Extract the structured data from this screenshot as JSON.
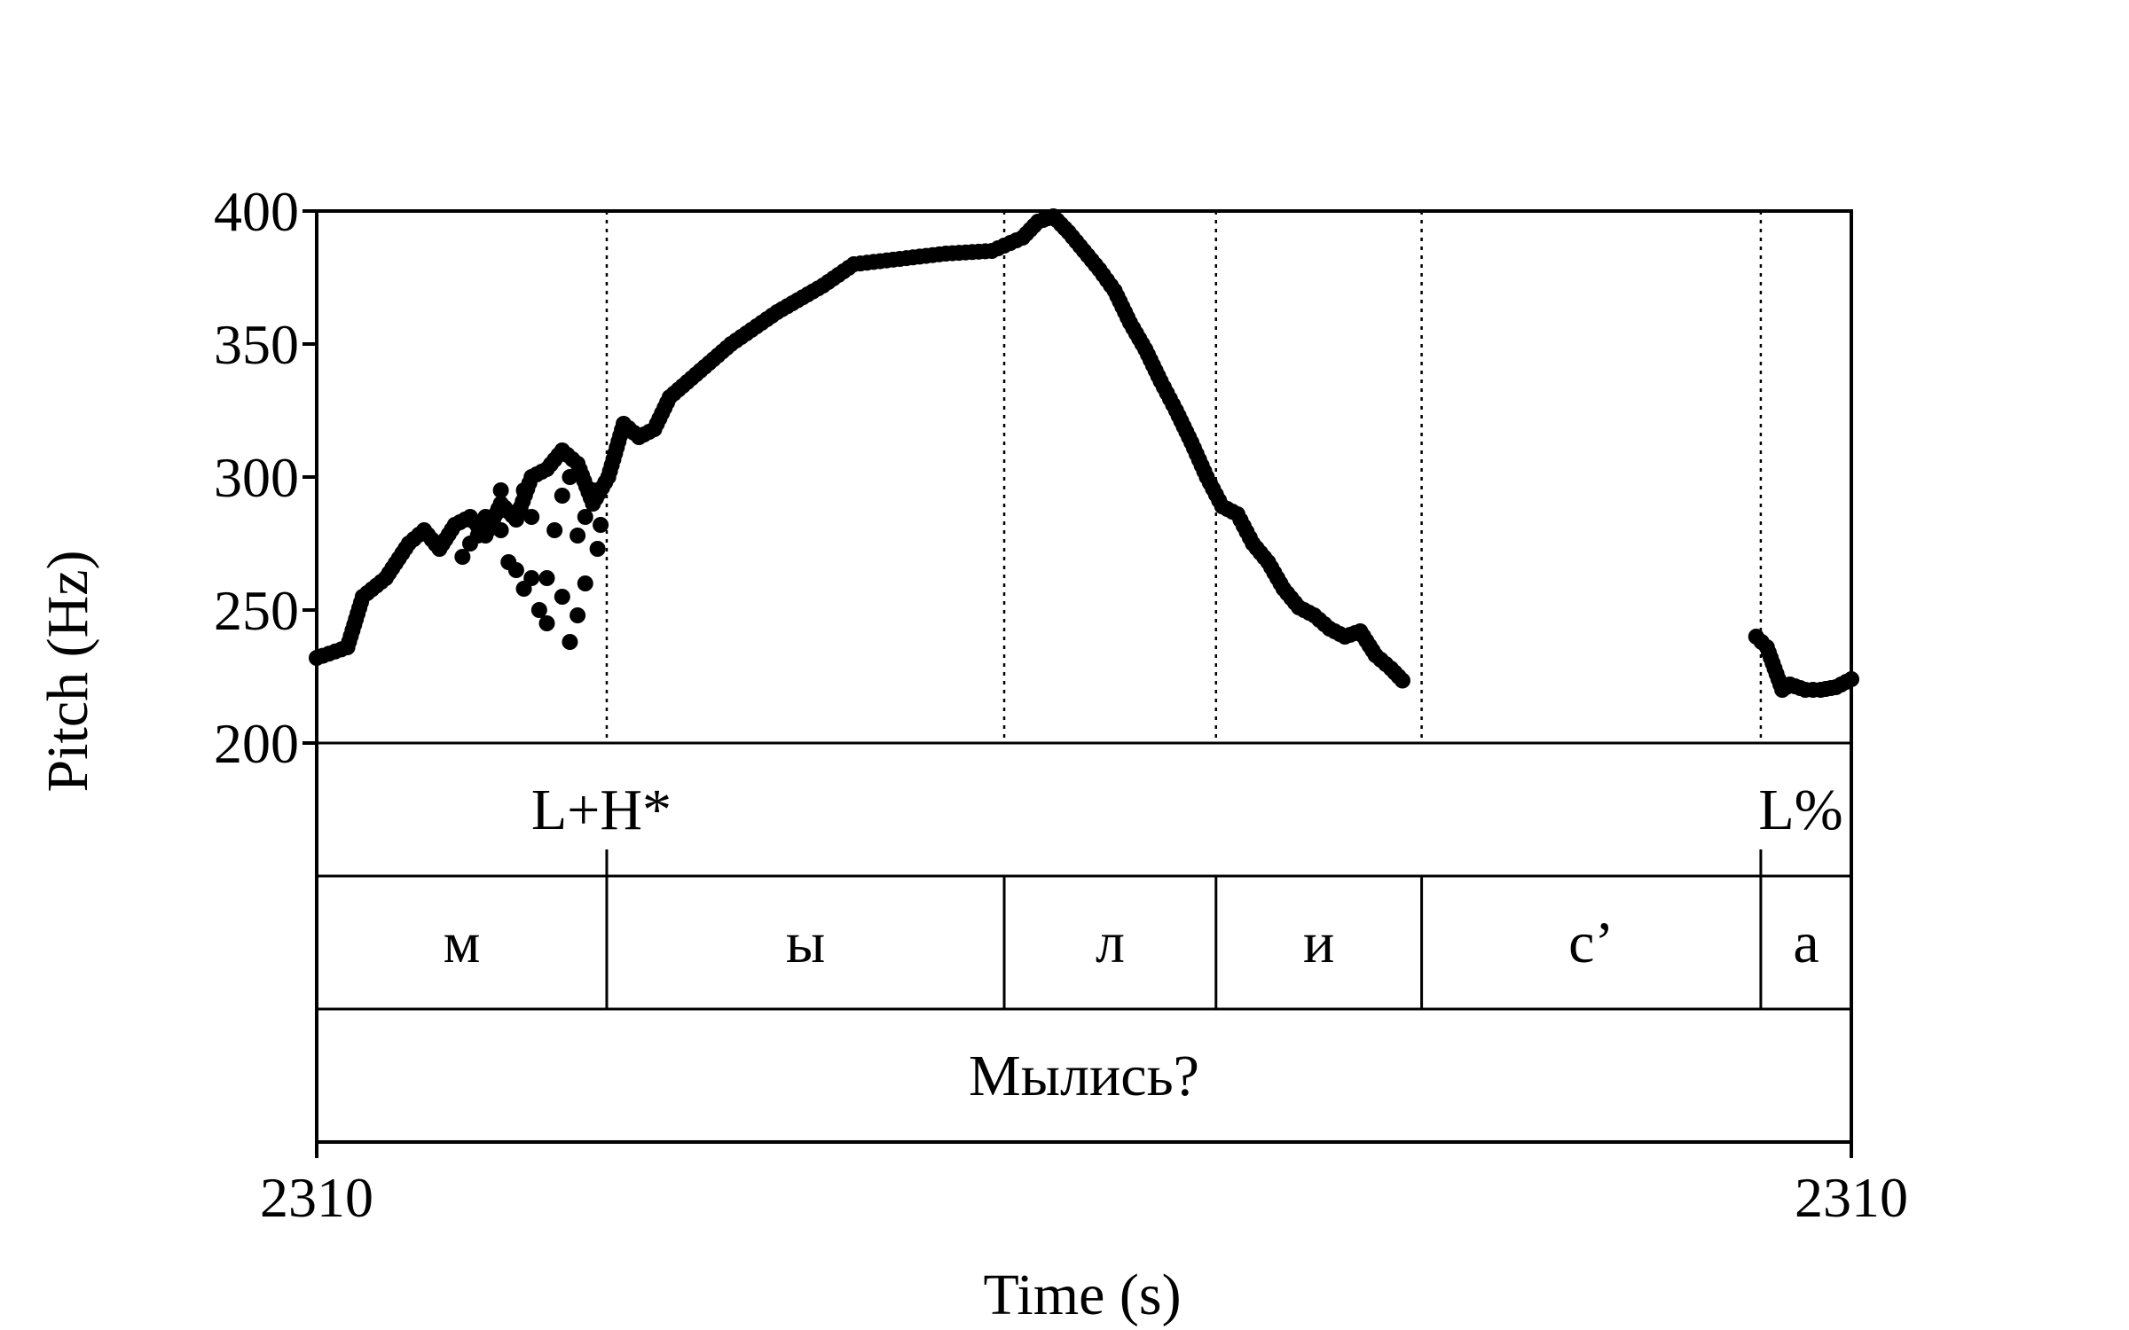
{
  "chart_data": {
    "type": "scatter",
    "ylabel": "Pitch (Hz)",
    "xlabel": "Time (s)",
    "ylim": [
      200,
      400
    ],
    "yticks": [
      "200",
      "250",
      "300",
      "350",
      "400"
    ],
    "ytick_values": [
      200,
      250,
      300,
      350,
      400
    ],
    "xlim": [
      0,
      1
    ],
    "xtick_labels": {
      "start": "2310",
      "end": "2310"
    },
    "boundaries": [
      0.189,
      0.448,
      0.586,
      0.72,
      0.941
    ],
    "tones": [
      {
        "label": "L+H*",
        "t": 0.189
      },
      {
        "label": "L%",
        "t": 0.941
      }
    ],
    "segments": [
      {
        "label": "м",
        "start": 0.0,
        "end": 0.189
      },
      {
        "label": "ы",
        "start": 0.189,
        "end": 0.448
      },
      {
        "label": "л",
        "start": 0.448,
        "end": 0.586
      },
      {
        "label": "и",
        "start": 0.586,
        "end": 0.72
      },
      {
        "label": "с’",
        "start": 0.72,
        "end": 0.941
      },
      {
        "label": "а",
        "start": 0.941,
        "end": 1.0
      }
    ],
    "words": [
      {
        "label": "Мылись?",
        "start": 0.0,
        "end": 1.0
      }
    ],
    "pitch_contour": [
      [
        0.0,
        232
      ],
      [
        0.02,
        236
      ],
      [
        0.03,
        255
      ],
      [
        0.045,
        262
      ],
      [
        0.06,
        275
      ],
      [
        0.07,
        280
      ],
      [
        0.08,
        273
      ],
      [
        0.09,
        282
      ],
      [
        0.1,
        285
      ],
      [
        0.11,
        278
      ],
      [
        0.12,
        290
      ],
      [
        0.13,
        284
      ],
      [
        0.14,
        300
      ],
      [
        0.15,
        303
      ],
      [
        0.16,
        310
      ],
      [
        0.17,
        305
      ],
      [
        0.18,
        290
      ],
      [
        0.19,
        300
      ],
      [
        0.2,
        320
      ],
      [
        0.21,
        315
      ],
      [
        0.22,
        318
      ],
      [
        0.23,
        330
      ],
      [
        0.25,
        340
      ],
      [
        0.27,
        350
      ],
      [
        0.3,
        362
      ],
      [
        0.33,
        372
      ],
      [
        0.35,
        380
      ],
      [
        0.38,
        382
      ],
      [
        0.41,
        384
      ],
      [
        0.44,
        385
      ],
      [
        0.46,
        390
      ],
      [
        0.47,
        396
      ],
      [
        0.48,
        398
      ],
      [
        0.49,
        392
      ],
      [
        0.5,
        385
      ],
      [
        0.51,
        378
      ],
      [
        0.52,
        370
      ],
      [
        0.53,
        358
      ],
      [
        0.54,
        348
      ],
      [
        0.55,
        336
      ],
      [
        0.56,
        325
      ],
      [
        0.57,
        313
      ],
      [
        0.58,
        300
      ],
      [
        0.59,
        289
      ],
      [
        0.6,
        286
      ],
      [
        0.61,
        275
      ],
      [
        0.62,
        268
      ],
      [
        0.63,
        258
      ],
      [
        0.64,
        251
      ],
      [
        0.65,
        248
      ],
      [
        0.66,
        243
      ],
      [
        0.67,
        240
      ],
      [
        0.68,
        242
      ],
      [
        0.69,
        233
      ],
      [
        0.7,
        228
      ],
      [
        0.71,
        222
      ],
      [
        0.938,
        240
      ],
      [
        0.945,
        236
      ],
      [
        0.95,
        228
      ],
      [
        0.955,
        220
      ],
      [
        0.96,
        222
      ],
      [
        0.97,
        220
      ],
      [
        0.98,
        220
      ],
      [
        0.99,
        221
      ],
      [
        1.0,
        224
      ]
    ],
    "scatter_points": [
      [
        0.095,
        270
      ],
      [
        0.1,
        275
      ],
      [
        0.105,
        278
      ],
      [
        0.11,
        285
      ],
      [
        0.115,
        282
      ],
      [
        0.12,
        280
      ],
      [
        0.125,
        268
      ],
      [
        0.13,
        265
      ],
      [
        0.135,
        258
      ],
      [
        0.14,
        262
      ],
      [
        0.145,
        250
      ],
      [
        0.15,
        262
      ],
      [
        0.155,
        280
      ],
      [
        0.16,
        293
      ],
      [
        0.165,
        300
      ],
      [
        0.17,
        278
      ],
      [
        0.175,
        285
      ],
      [
        0.18,
        295
      ],
      [
        0.183,
        273
      ],
      [
        0.17,
        248
      ],
      [
        0.14,
        285
      ],
      [
        0.16,
        255
      ],
      [
        0.12,
        295
      ],
      [
        0.175,
        260
      ],
      [
        0.15,
        245
      ],
      [
        0.165,
        238
      ],
      [
        0.135,
        295
      ],
      [
        0.185,
        282
      ]
    ]
  }
}
